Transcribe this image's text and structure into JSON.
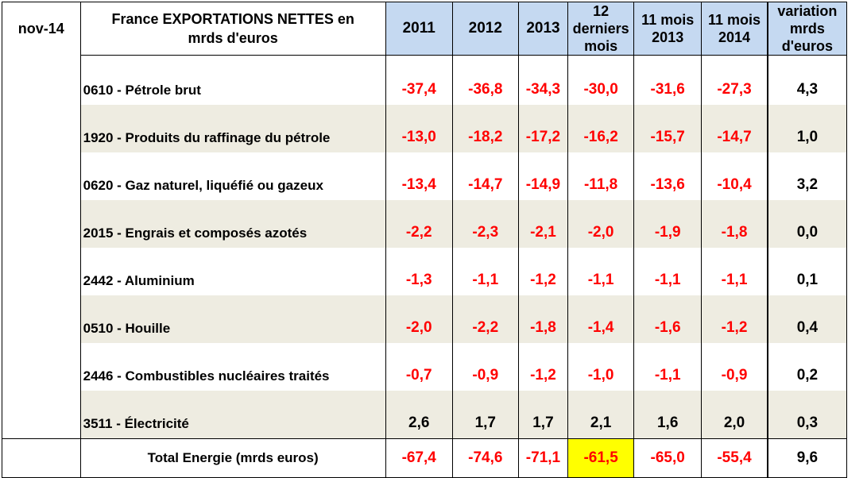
{
  "table": {
    "corner": "nov-14",
    "title_line1": "France EXPORTATIONS NETTES en",
    "title_line2": "mrds d'euros",
    "headers": {
      "y2011": "2011",
      "y2012": "2012",
      "y2013": "2013",
      "last12_l1": "12",
      "last12_l2": "derniers",
      "last12_l3": "mois",
      "m2013_l1": "11 mois",
      "m2013_l2": "2013",
      "m2014_l1": "11 mois",
      "m2014_l2": "2014",
      "var_l1": "variation",
      "var_l2": "mrds",
      "var_l3": "d'euros"
    },
    "rows": [
      {
        "label": "0610 - Pétrole brut",
        "v2011": "-37,4",
        "v2012": "-36,8",
        "v2013": "-34,3",
        "v12m": "-30,0",
        "v11m2013": "-31,6",
        "v11m2014": "-27,3",
        "variation": "4,3"
      },
      {
        "label": "1920 - Produits du raffinage du pétrole",
        "v2011": "-13,0",
        "v2012": "-18,2",
        "v2013": "-17,2",
        "v12m": "-16,2",
        "v11m2013": "-15,7",
        "v11m2014": "-14,7",
        "variation": "1,0"
      },
      {
        "label": "0620 - Gaz naturel, liquéfié ou gazeux",
        "v2011": "-13,4",
        "v2012": "-14,7",
        "v2013": "-14,9",
        "v12m": "-11,8",
        "v11m2013": "-13,6",
        "v11m2014": "-10,4",
        "variation": "3,2"
      },
      {
        "label": "2015 - Engrais et composés azotés",
        "v2011": "-2,2",
        "v2012": "-2,3",
        "v2013": "-2,1",
        "v12m": "-2,0",
        "v11m2013": "-1,9",
        "v11m2014": "-1,8",
        "variation": "0,0"
      },
      {
        "label": "2442 - Aluminium",
        "v2011": "-1,3",
        "v2012": "-1,1",
        "v2013": "-1,2",
        "v12m": "-1,1",
        "v11m2013": "-1,1",
        "v11m2014": "-1,1",
        "variation": "0,1"
      },
      {
        "label": "0510 - Houille",
        "v2011": "-2,0",
        "v2012": "-2,2",
        "v2013": "-1,8",
        "v12m": "-1,4",
        "v11m2013": "-1,6",
        "v11m2014": "-1,2",
        "variation": "0,4"
      },
      {
        "label": "2446 - Combustibles nucléaires traités",
        "v2011": "-0,7",
        "v2012": "-0,9",
        "v2013": "-1,2",
        "v12m": "-1,0",
        "v11m2013": "-1,1",
        "v11m2014": "-0,9",
        "variation": "0,2"
      },
      {
        "label": "3511 - Électricité",
        "v2011": "2,6",
        "v2012": "1,7",
        "v2013": "1,7",
        "v12m": "2,1",
        "v11m2013": "1,6",
        "v11m2014": "2,0",
        "variation": "0,3"
      }
    ],
    "total": {
      "label": "Total Energie (mrds euros)",
      "v2011": "-67,4",
      "v2012": "-74,6",
      "v2013": "-71,1",
      "v12m": "-61,5",
      "v11m2013": "-65,0",
      "v11m2014": "-55,4",
      "variation": "9,6"
    },
    "colors": {
      "header_blue": "#c5d9f1",
      "row_shade": "#eeece1",
      "negative": "#ff0000",
      "highlight": "#ffff00"
    }
  }
}
